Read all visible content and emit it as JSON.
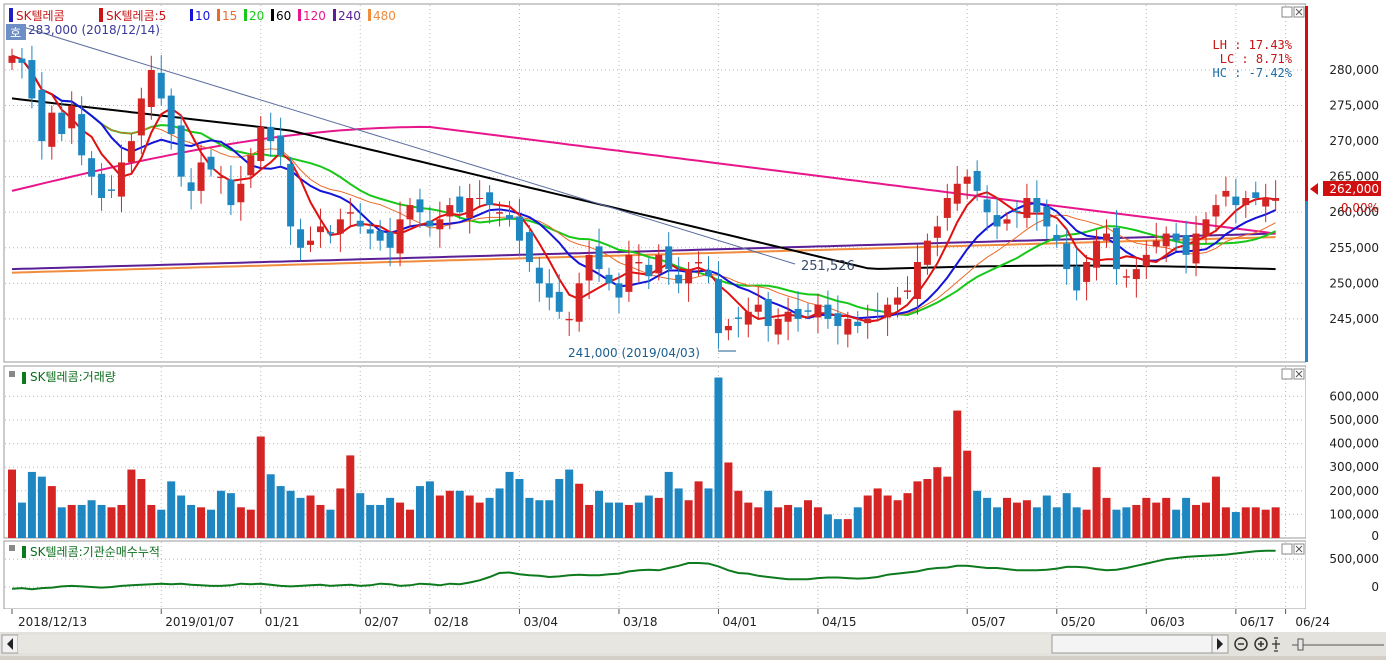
{
  "legend": {
    "stock": "SK텔레콤",
    "ma_prefix": "SK텔레콤:5",
    "periods": [
      "10",
      "15",
      "20",
      "60",
      "120",
      "240",
      "480"
    ],
    "colors": {
      "5": "#e01010",
      "10": "#1414d8",
      "15": "#e86a2a",
      "20": "#18c818",
      "60": "#000000",
      "120": "#e8168c",
      "240": "#5a1e96",
      "480": "#f08c3c"
    }
  },
  "price_panel": {
    "high_label": "283,000 (2018/12/14)",
    "low_label": "241,000 (2019/04/03)",
    "trend_label": "251,526",
    "lh": "LH : 17.43%",
    "lc": "LC :  8.71%",
    "hc": "HC : -7.42%",
    "current_price": "262,000",
    "current_change": "0.00%",
    "y_ticks": [
      {
        "v": 245000,
        "label": "245,000"
      },
      {
        "v": 250000,
        "label": "250,000"
      },
      {
        "v": 255000,
        "label": "255,000"
      },
      {
        "v": 260000,
        "label": "260,000"
      },
      {
        "v": 265000,
        "label": "265,000"
      },
      {
        "v": 270000,
        "label": "270,000"
      },
      {
        "v": 275000,
        "label": "275,000"
      },
      {
        "v": 280000,
        "label": "280,000"
      }
    ],
    "ylim": [
      239500,
      289000
    ]
  },
  "volume_panel": {
    "title": "SK텔레콤:거래량",
    "y_ticks": [
      {
        "v": 0,
        "label": "0"
      },
      {
        "v": 100000,
        "label": "100,000"
      },
      {
        "v": 200000,
        "label": "200,000"
      },
      {
        "v": 300000,
        "label": "300,000"
      },
      {
        "v": 400000,
        "label": "400,000"
      },
      {
        "v": 500000,
        "label": "500,000"
      },
      {
        "v": 600000,
        "label": "600,000"
      }
    ]
  },
  "inst_panel": {
    "title": "SK텔레콤:기관순매수누적",
    "y_ticks": [
      {
        "v": 0,
        "label": "0"
      },
      {
        "v": 500000,
        "label": "500,000"
      }
    ]
  },
  "x_axis": {
    "labels": [
      {
        "i": 0,
        "label": "2018/12/13"
      },
      {
        "i": 15,
        "label": "2019/01/07"
      },
      {
        "i": 25,
        "label": "01/21"
      },
      {
        "i": 35,
        "label": "02/07"
      },
      {
        "i": 42,
        "label": "02/18"
      },
      {
        "i": 51,
        "label": "03/04"
      },
      {
        "i": 61,
        "label": "03/18"
      },
      {
        "i": 71,
        "label": "04/01"
      },
      {
        "i": 81,
        "label": "04/15"
      },
      {
        "i": 96,
        "label": "05/07"
      },
      {
        "i": 105,
        "label": "05/20"
      },
      {
        "i": 114,
        "label": "06/03"
      },
      {
        "i": 123,
        "label": "06/17"
      },
      {
        "i": 128,
        "label": "06/24"
      }
    ]
  },
  "chart_data": {
    "type": "candlestick",
    "title": "SK텔레콤",
    "x_start": "2018/12/13",
    "ylim": [
      239500,
      289000
    ],
    "closes": [
      282000,
      281000,
      276000,
      270000,
      274000,
      271000,
      275000,
      268000,
      265000,
      262000,
      263000,
      267000,
      270000,
      276000,
      280000,
      276000,
      271000,
      265000,
      263000,
      267000,
      266000,
      265000,
      261000,
      264000,
      268000,
      272000,
      270000,
      268000,
      258000,
      255000,
      256000,
      258000,
      257000,
      259000,
      260000,
      258000,
      257000,
      256000,
      255000,
      259000,
      261000,
      260000,
      258000,
      259000,
      261000,
      260000,
      262000,
      262000,
      261000,
      260000,
      259000,
      256000,
      253000,
      250000,
      248000,
      246000,
      245000,
      250000,
      254000,
      252000,
      250000,
      248000,
      254000,
      253000,
      251000,
      254000,
      252000,
      250000,
      252000,
      253000,
      251000,
      243000,
      244000,
      245000,
      246000,
      247000,
      244000,
      245000,
      246000,
      245000,
      246000,
      247000,
      245000,
      244000,
      245000,
      244000,
      245000,
      246000,
      247000,
      248000,
      249000,
      253000,
      256000,
      258000,
      262000,
      264000,
      265000,
      263000,
      260000,
      258000,
      259000,
      260000,
      262000,
      260000,
      258000,
      256000,
      252000,
      249000,
      253000,
      256000,
      257000,
      252000,
      251000,
      252000,
      254000,
      256000,
      257000,
      256000,
      254000,
      257000,
      259000,
      261000,
      263000,
      261000,
      262000,
      262000,
      262000,
      262000
    ],
    "volumes": [
      290000,
      150000,
      280000,
      260000,
      220000,
      130000,
      140000,
      140000,
      160000,
      140000,
      130000,
      140000,
      290000,
      250000,
      140000,
      120000,
      240000,
      180000,
      140000,
      130000,
      120000,
      200000,
      190000,
      130000,
      120000,
      430000,
      270000,
      220000,
      200000,
      170000,
      180000,
      140000,
      120000,
      210000,
      350000,
      190000,
      140000,
      140000,
      170000,
      150000,
      120000,
      220000,
      240000,
      180000,
      200000,
      200000,
      180000,
      150000,
      170000,
      210000,
      280000,
      250000,
      170000,
      160000,
      160000,
      250000,
      290000,
      230000,
      140000,
      200000,
      150000,
      150000,
      140000,
      150000,
      180000,
      170000,
      280000,
      210000,
      160000,
      240000,
      210000,
      680000,
      320000,
      200000,
      150000,
      130000,
      200000,
      130000,
      140000,
      130000,
      160000,
      130000,
      100000,
      80000,
      80000,
      130000,
      180000,
      210000,
      180000,
      160000,
      190000,
      240000,
      250000,
      300000,
      260000,
      540000,
      370000,
      200000,
      170000,
      130000,
      170000,
      150000,
      160000,
      130000,
      180000,
      130000,
      190000,
      130000,
      120000,
      300000,
      170000,
      120000,
      130000,
      140000,
      170000,
      150000,
      170000,
      120000,
      170000,
      140000,
      150000,
      260000,
      130000,
      110000,
      130000,
      130000,
      120000,
      130000
    ],
    "inst_cum": [
      -30000,
      -20000,
      -40000,
      -20000,
      -10000,
      10000,
      20000,
      10000,
      0,
      -10000,
      0,
      20000,
      30000,
      40000,
      50000,
      60000,
      50000,
      60000,
      40000,
      30000,
      20000,
      20000,
      30000,
      60000,
      50000,
      60000,
      40000,
      20000,
      10000,
      20000,
      30000,
      40000,
      20000,
      30000,
      40000,
      20000,
      30000,
      60000,
      50000,
      20000,
      30000,
      60000,
      50000,
      30000,
      60000,
      50000,
      80000,
      120000,
      180000,
      250000,
      260000,
      230000,
      210000,
      200000,
      180000,
      190000,
      210000,
      220000,
      210000,
      210000,
      230000,
      240000,
      280000,
      300000,
      310000,
      300000,
      340000,
      380000,
      430000,
      430000,
      420000,
      370000,
      300000,
      250000,
      240000,
      200000,
      180000,
      160000,
      140000,
      140000,
      140000,
      160000,
      170000,
      170000,
      160000,
      150000,
      160000,
      180000,
      220000,
      240000,
      260000,
      280000,
      320000,
      340000,
      350000,
      380000,
      380000,
      360000,
      340000,
      340000,
      320000,
      300000,
      300000,
      300000,
      310000,
      330000,
      360000,
      360000,
      350000,
      320000,
      300000,
      310000,
      340000,
      380000,
      420000,
      460000,
      500000,
      520000,
      540000,
      550000,
      560000,
      570000,
      580000,
      600000,
      620000,
      640000,
      650000,
      650000
    ]
  }
}
